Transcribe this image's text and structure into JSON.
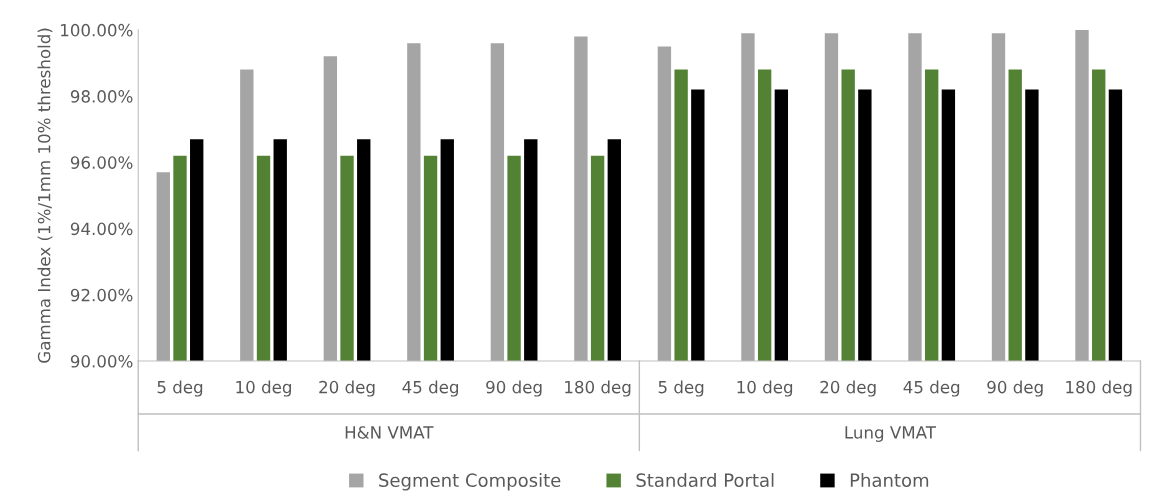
{
  "chart_data": {
    "type": "bar",
    "ylabel": "Gamma Index (1%/1mm 10% threshold)",
    "categories": [
      "5 deg",
      "10 deg",
      "20 deg",
      "45 deg",
      "90 deg",
      "180 deg",
      "5 deg",
      "10 deg",
      "20 deg",
      "45 deg",
      "90 deg",
      "180 deg"
    ],
    "annotations": [
      "H&N VMAT",
      "Lung VMAT"
    ],
    "series": [
      {
        "name": "Segment Composite",
        "color": "#a5a5a5",
        "values": [
          95.7,
          98.8,
          99.2,
          99.6,
          99.6,
          99.8,
          99.5,
          99.9,
          99.9,
          99.9,
          99.9,
          100.0
        ]
      },
      {
        "name": "Standard Portal",
        "color": "#548235",
        "values": [
          96.2,
          96.2,
          96.2,
          96.2,
          96.2,
          96.2,
          98.8,
          98.8,
          98.8,
          98.8,
          98.8,
          98.8
        ]
      },
      {
        "name": "Phantom",
        "color": "#000000",
        "values": [
          96.7,
          96.7,
          96.7,
          96.7,
          96.7,
          96.7,
          98.2,
          98.2,
          98.2,
          98.2,
          98.2,
          98.2
        ]
      }
    ],
    "ylim": [
      90,
      100
    ],
    "yticks": [
      {
        "value": 90,
        "label": "90.00%"
      },
      {
        "value": 92,
        "label": "92.00%"
      },
      {
        "value": 94,
        "label": "94.00%"
      },
      {
        "value": 96,
        "label": "96.00%"
      },
      {
        "value": 98,
        "label": "98.00%"
      },
      {
        "value": 100,
        "label": "100.00%"
      }
    ],
    "grid": false,
    "legend": "bottom"
  }
}
